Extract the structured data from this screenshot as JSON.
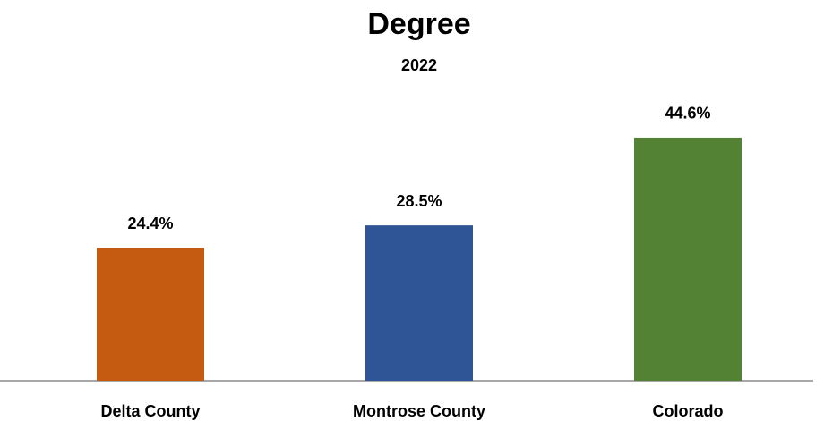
{
  "chart_data": {
    "type": "bar",
    "title": "Degree",
    "subtitle": "2022",
    "categories": [
      "Delta County",
      "Montrose County",
      "Colorado"
    ],
    "values": [
      24.4,
      28.5,
      44.6
    ],
    "value_labels": [
      "24.4%",
      "28.5%",
      "44.6%"
    ],
    "colors": [
      "#c55a11",
      "#2f5597",
      "#548235"
    ]
  }
}
